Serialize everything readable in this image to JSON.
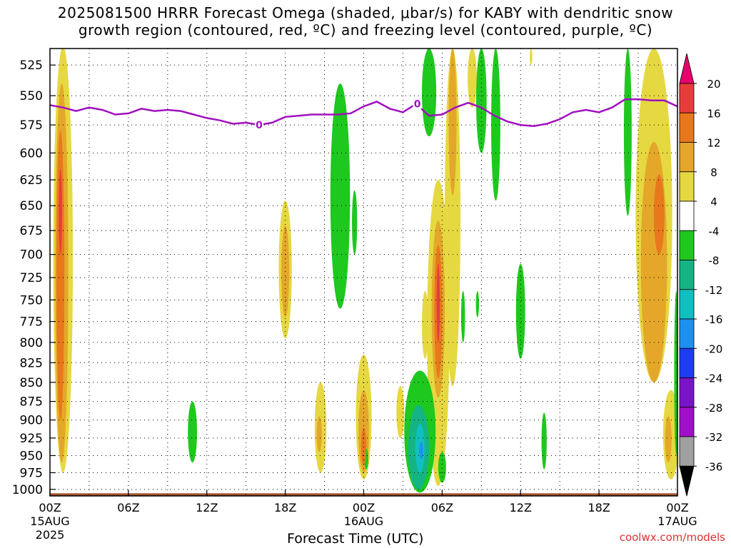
{
  "title_line1": "2025081500 HRRR Forecast Omega (shaded, μbar/s) for KABY with dendritic snow",
  "title_line2": "growth region (contoured, red, ºC) and freezing level (contoured, purple, ºC)",
  "credit": "coolwx.com/models",
  "chart_data": {
    "type": "heatmap",
    "xlabel": "Forecast Time (UTC)",
    "x_ticks": [
      {
        "hour": 0,
        "label": "00Z",
        "sub": "15AUG",
        "sub2": "2025"
      },
      {
        "hour": 6,
        "label": "06Z",
        "sub": "",
        "sub2": ""
      },
      {
        "hour": 12,
        "label": "12Z",
        "sub": "",
        "sub2": ""
      },
      {
        "hour": 18,
        "label": "18Z",
        "sub": "",
        "sub2": ""
      },
      {
        "hour": 24,
        "label": "00Z",
        "sub": "16AUG",
        "sub2": ""
      },
      {
        "hour": 30,
        "label": "06Z",
        "sub": "",
        "sub2": ""
      },
      {
        "hour": 36,
        "label": "12Z",
        "sub": "",
        "sub2": ""
      },
      {
        "hour": 42,
        "label": "18Z",
        "sub": "",
        "sub2": ""
      },
      {
        "hour": 48,
        "label": "00Z",
        "sub": "17AUG",
        "sub2": ""
      }
    ],
    "xlim": [
      0,
      48
    ],
    "y_ticks": [
      "525",
      "550",
      "575",
      "600",
      "625",
      "650",
      "675",
      "700",
      "725",
      "750",
      "775",
      "800",
      "825",
      "850",
      "875",
      "900",
      "925",
      "950",
      "975",
      "1000"
    ],
    "ylim": [
      1010,
      512
    ],
    "y_scale": "log-pressure",
    "grid": true,
    "colorbar": {
      "labels": [
        "20",
        "16",
        "12",
        "8",
        "4",
        "-4",
        "-8",
        "-12",
        "-16",
        "-20",
        "-24",
        "-28",
        "-32",
        "-36"
      ],
      "colors": [
        "#e8006c",
        "#e83c3c",
        "#e8781c",
        "#e4a72a",
        "#e6d840",
        "#ffffff",
        "#1ec81e",
        "#14b484",
        "#10c0c0",
        "#1e90f0",
        "#1e3cf0",
        "#7a14c8",
        "#a010c8",
        "#a0a0a0",
        "#000000"
      ]
    },
    "freezing_level": {
      "label": "0",
      "color": "#a010c0",
      "hours": [
        0,
        1,
        2,
        3,
        4,
        5,
        6,
        7,
        8,
        9,
        10,
        11,
        12,
        13,
        14,
        15,
        16,
        17,
        18,
        19,
        20,
        21,
        22,
        23,
        24,
        25,
        26,
        27,
        28,
        29,
        30,
        31,
        32,
        33,
        34,
        35,
        36,
        37,
        38,
        39,
        40,
        41,
        42,
        43,
        44,
        45,
        46,
        47,
        48
      ],
      "pressure": [
        558,
        560,
        563,
        560,
        562,
        566,
        565,
        561,
        563,
        562,
        563,
        566,
        569,
        571,
        574,
        573,
        575,
        573,
        568,
        567,
        566,
        566,
        566,
        565,
        559,
        555,
        561,
        564,
        557,
        567,
        566,
        560,
        556,
        560,
        567,
        572,
        575,
        576,
        574,
        570,
        564,
        562,
        564,
        560,
        553,
        553,
        554,
        554,
        559
      ]
    },
    "surface": {
      "color": "#a0522d",
      "pressure": 1006
    },
    "regions": [
      {
        "value": 4,
        "hour": 1.0,
        "half_width": 0.75,
        "p_top": 510,
        "p_bot": 975
      },
      {
        "value": 8,
        "hour": 0.9,
        "half_width": 0.5,
        "p_top": 540,
        "p_bot": 960
      },
      {
        "value": 12,
        "hour": 0.8,
        "half_width": 0.3,
        "p_top": 580,
        "p_bot": 900
      },
      {
        "value": 16,
        "hour": 0.8,
        "half_width": 0.12,
        "p_top": 615,
        "p_bot": 700
      },
      {
        "value": 4,
        "hour": 18.0,
        "half_width": 0.5,
        "p_top": 645,
        "p_bot": 795
      },
      {
        "value": 8,
        "hour": 18.0,
        "half_width": 0.3,
        "p_top": 670,
        "p_bot": 770
      },
      {
        "value": 4,
        "hour": 20.7,
        "half_width": 0.45,
        "p_top": 850,
        "p_bot": 975
      },
      {
        "value": 8,
        "hour": 20.6,
        "half_width": 0.2,
        "p_top": 895,
        "p_bot": 945
      },
      {
        "value": 4,
        "hour": 24.0,
        "half_width": 0.6,
        "p_top": 815,
        "p_bot": 985
      },
      {
        "value": 8,
        "hour": 24.0,
        "half_width": 0.4,
        "p_top": 860,
        "p_bot": 975
      },
      {
        "value": 12,
        "hour": 24.0,
        "half_width": 0.2,
        "p_top": 910,
        "p_bot": 965
      },
      {
        "value": 4,
        "hour": 26.8,
        "half_width": 0.3,
        "p_top": 855,
        "p_bot": 925
      },
      {
        "value": 4,
        "hour": 28.7,
        "half_width": 0.25,
        "p_top": 740,
        "p_bot": 820
      },
      {
        "value": 4,
        "hour": 29.7,
        "half_width": 0.85,
        "p_top": 625,
        "p_bot": 995
      },
      {
        "value": 8,
        "hour": 29.7,
        "half_width": 0.5,
        "p_top": 665,
        "p_bot": 870
      },
      {
        "value": 12,
        "hour": 29.7,
        "half_width": 0.3,
        "p_top": 690,
        "p_bot": 845
      },
      {
        "value": 16,
        "hour": 29.7,
        "half_width": 0.12,
        "p_top": 710,
        "p_bot": 800
      },
      {
        "value": 4,
        "hour": 30.8,
        "half_width": 0.6,
        "p_top": 512,
        "p_bot": 855
      },
      {
        "value": 8,
        "hour": 30.8,
        "half_width": 0.3,
        "p_top": 512,
        "p_bot": 640
      },
      {
        "value": 4,
        "hour": 32.3,
        "half_width": 0.35,
        "p_top": 512,
        "p_bot": 560
      },
      {
        "value": 4,
        "hour": 36.8,
        "half_width": 0.1,
        "p_top": 512,
        "p_bot": 525
      },
      {
        "value": 4,
        "hour": 46.2,
        "half_width": 1.4,
        "p_top": 512,
        "p_bot": 850
      },
      {
        "value": 8,
        "hour": 46.2,
        "half_width": 1.0,
        "p_top": 590,
        "p_bot": 850
      },
      {
        "value": 12,
        "hour": 46.6,
        "half_width": 0.4,
        "p_top": 620,
        "p_bot": 700
      },
      {
        "value": 4,
        "hour": 47.5,
        "half_width": 0.6,
        "p_top": 860,
        "p_bot": 985
      },
      {
        "value": 8,
        "hour": 47.3,
        "half_width": 0.25,
        "p_top": 895,
        "p_bot": 960
      },
      {
        "value": -4,
        "hour": 22.2,
        "half_width": 0.75,
        "p_top": 540,
        "p_bot": 760
      },
      {
        "value": -8,
        "hour": 22.2,
        "half_width": 0.7,
        "p_top": 540,
        "p_bot": 750
      },
      {
        "value": -8,
        "hour": 23.3,
        "half_width": 0.2,
        "p_top": 635,
        "p_bot": 700
      },
      {
        "value": -4,
        "hour": 10.9,
        "half_width": 0.35,
        "p_top": 875,
        "p_bot": 960
      },
      {
        "value": -8,
        "hour": 10.9,
        "half_width": 0.3,
        "p_top": 880,
        "p_bot": 955
      },
      {
        "value": -8,
        "hour": 28.3,
        "half_width": 1.2,
        "p_top": 835,
        "p_bot": 1005
      },
      {
        "value": -12,
        "hour": 28.2,
        "half_width": 0.8,
        "p_top": 880,
        "p_bot": 1000
      },
      {
        "value": -16,
        "hour": 28.3,
        "half_width": 0.35,
        "p_top": 905,
        "p_bot": 975
      },
      {
        "value": -20,
        "hour": 28.4,
        "half_width": 0.15,
        "p_top": 930,
        "p_bot": 955
      },
      {
        "value": -8,
        "hour": 30.0,
        "half_width": 0.3,
        "p_top": 945,
        "p_bot": 990
      },
      {
        "value": -8,
        "hour": 29.0,
        "half_width": 0.55,
        "p_top": 512,
        "p_bot": 585
      },
      {
        "value": -8,
        "hour": 33.0,
        "half_width": 0.4,
        "p_top": 512,
        "p_bot": 600
      },
      {
        "value": -8,
        "hour": 34.1,
        "half_width": 0.35,
        "p_top": 512,
        "p_bot": 645
      },
      {
        "value": -8,
        "hour": 36.0,
        "half_width": 0.35,
        "p_top": 710,
        "p_bot": 820
      },
      {
        "value": -8,
        "hour": 37.8,
        "half_width": 0.2,
        "p_top": 890,
        "p_bot": 970
      },
      {
        "value": -8,
        "hour": 31.6,
        "half_width": 0.15,
        "p_top": 740,
        "p_bot": 800
      },
      {
        "value": -8,
        "hour": 32.7,
        "half_width": 0.12,
        "p_top": 740,
        "p_bot": 770
      },
      {
        "value": -8,
        "hour": 24.2,
        "half_width": 0.15,
        "p_top": 940,
        "p_bot": 970
      },
      {
        "value": -8,
        "hour": 44.2,
        "half_width": 0.3,
        "p_top": 512,
        "p_bot": 660
      },
      {
        "value": -8,
        "hour": 47.9,
        "half_width": 0.15,
        "p_top": 740,
        "p_bot": 950
      }
    ]
  }
}
